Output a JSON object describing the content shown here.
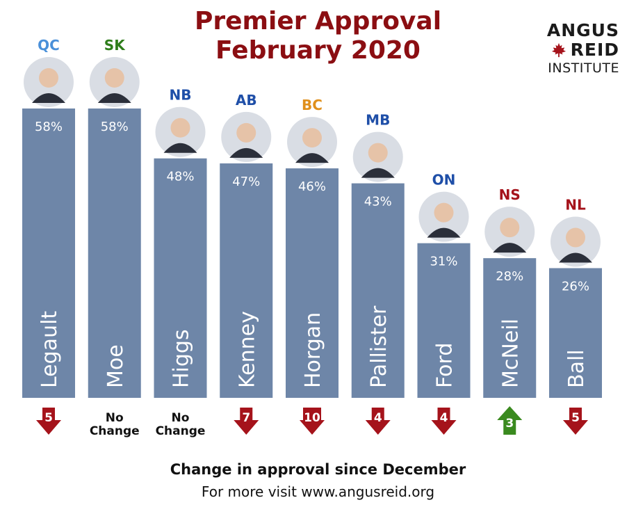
{
  "title_line1": "Premier Approval",
  "title_line2": "February 2020",
  "logo": {
    "line1": "ANGUS",
    "line2": "REID",
    "line3": "INSTITUTE"
  },
  "footer": {
    "subtitle": "Change in approval since December",
    "link_text": "For more visit www.angusreid.org"
  },
  "colors": {
    "bar": "#6e86a8",
    "title": "#8b0e12",
    "arrow_down": "#a5131b",
    "arrow_up": "#3a8a1f"
  },
  "chart_data": {
    "type": "bar",
    "title": "Premier Approval February 2020",
    "categories": [
      "Legault",
      "Moe",
      "Higgs",
      "Kenney",
      "Horgan",
      "Pallister",
      "Ford",
      "McNeil",
      "Ball"
    ],
    "provinces": [
      "QC",
      "SK",
      "NB",
      "AB",
      "BC",
      "MB",
      "ON",
      "NS",
      "NL"
    ],
    "province_colors": [
      "#4a90d9",
      "#2e7d1a",
      "#1f4fa8",
      "#1f4fa8",
      "#e0901c",
      "#1f4fa8",
      "#1f4fa8",
      "#a5131b",
      "#a5131b"
    ],
    "values": [
      58,
      58,
      48,
      47,
      46,
      43,
      31,
      28,
      26
    ],
    "value_labels": [
      "58%",
      "58%",
      "48%",
      "47%",
      "46%",
      "43%",
      "31%",
      "28%",
      "26%"
    ],
    "change_direction": [
      "down",
      "none",
      "none",
      "down",
      "down",
      "down",
      "down",
      "up",
      "down"
    ],
    "change_values": [
      "5",
      "No Change",
      "No Change",
      "7",
      "10",
      "4",
      "4",
      "3",
      "5"
    ],
    "change_caption": "Change in approval since December",
    "ylim": [
      0,
      58
    ]
  }
}
